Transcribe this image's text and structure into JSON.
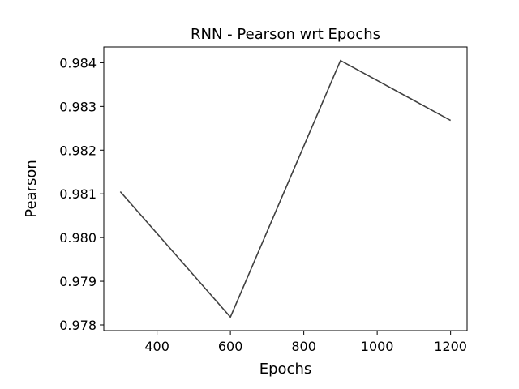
{
  "chart_data": {
    "type": "line",
    "title": "RNN - Pearson wrt Epochs",
    "xlabel": "Epochs",
    "ylabel": "Pearson",
    "x": [
      300,
      600,
      900,
      1200
    ],
    "series": [
      {
        "values": [
          0.98105,
          0.97818,
          0.98405,
          0.98268
        ],
        "color": "#404040"
      }
    ],
    "xlim": [
      255,
      1245
    ],
    "ylim": [
      0.97787,
      0.98436
    ],
    "xticks": [
      400,
      600,
      800,
      1000,
      1200
    ],
    "xtick_labels": [
      "400",
      "600",
      "800",
      "1000",
      "1200"
    ],
    "yticks": [
      0.978,
      0.979,
      0.98,
      0.981,
      0.982,
      0.983,
      0.984
    ],
    "ytick_labels": [
      "0.978",
      "0.979",
      "0.980",
      "0.981",
      "0.982",
      "0.983",
      "0.984"
    ],
    "grid": false,
    "legend": "none"
  }
}
